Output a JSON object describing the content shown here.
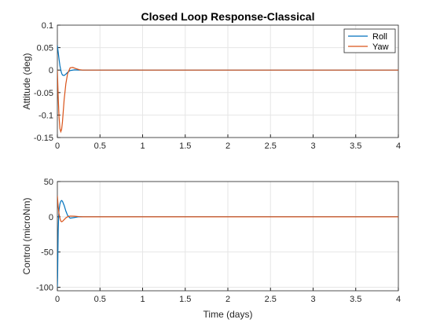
{
  "chart_data": [
    {
      "type": "line",
      "title": "Closed Loop Response-Classical",
      "xlabel": "",
      "ylabel": "Attitude (deg)",
      "xlim": [
        0,
        4
      ],
      "ylim": [
        -0.15,
        0.1
      ],
      "xticks": [
        "0",
        "0.5",
        "1",
        "1.5",
        "2",
        "2.5",
        "3",
        "3.5",
        "4"
      ],
      "yticks": [
        "0.1",
        "0.05",
        "0",
        "-0.05",
        "-0.1",
        "-0.15"
      ],
      "grid": true,
      "legend": {
        "placement": "top-right",
        "entries": [
          "Roll",
          "Yaw"
        ]
      },
      "series": [
        {
          "name": "Roll",
          "color": "#0072BD",
          "x": [
            0,
            0.01,
            0.02,
            0.03,
            0.04,
            0.05,
            0.06,
            0.08,
            0.1,
            0.12,
            0.15,
            0.2,
            0.25,
            0.3,
            0.5,
            1,
            2,
            3,
            4
          ],
          "y": [
            0.055,
            0.04,
            0.024,
            0.01,
            0.0,
            -0.007,
            -0.011,
            -0.012,
            -0.009,
            -0.005,
            -0.001,
            0.0005,
            0.0002,
            0,
            0,
            0,
            0,
            0,
            0
          ]
        },
        {
          "name": "Yaw",
          "color": "#D95319",
          "x": [
            0,
            0.005,
            0.01,
            0.02,
            0.03,
            0.04,
            0.05,
            0.06,
            0.07,
            0.08,
            0.1,
            0.12,
            0.15,
            0.18,
            0.22,
            0.26,
            0.3,
            0.5,
            1,
            2,
            3,
            4
          ],
          "y": [
            0,
            -0.03,
            -0.06,
            -0.105,
            -0.13,
            -0.137,
            -0.132,
            -0.115,
            -0.09,
            -0.065,
            -0.03,
            -0.008,
            0.005,
            0.006,
            0.003,
            0.0008,
            0,
            0,
            0,
            0,
            0,
            0
          ]
        }
      ]
    },
    {
      "type": "line",
      "title": "",
      "xlabel": "Time (days)",
      "ylabel": "Control (microNm)",
      "xlim": [
        0,
        4
      ],
      "ylim": [
        -105,
        50
      ],
      "xticks": [
        "0",
        "0.5",
        "1",
        "1.5",
        "2",
        "2.5",
        "3",
        "3.5",
        "4"
      ],
      "yticks": [
        "50",
        "0",
        "-50",
        "-100"
      ],
      "grid": true,
      "series": [
        {
          "name": "Roll",
          "color": "#0072BD",
          "x": [
            0,
            0.003,
            0.006,
            0.01,
            0.015,
            0.02,
            0.03,
            0.04,
            0.05,
            0.06,
            0.08,
            0.1,
            0.12,
            0.15,
            0.2,
            0.25,
            0.3,
            0.5,
            1,
            2,
            3,
            4
          ],
          "y": [
            -100,
            -85,
            -55,
            -20,
            0,
            10,
            18,
            22,
            23,
            22,
            16,
            8,
            2,
            -2,
            -1,
            0,
            0,
            0,
            0,
            0,
            0,
            0
          ]
        },
        {
          "name": "Yaw",
          "color": "#D95319",
          "x": [
            0,
            0.005,
            0.01,
            0.02,
            0.03,
            0.04,
            0.05,
            0.06,
            0.08,
            0.1,
            0.12,
            0.15,
            0.2,
            0.25,
            0.3,
            0.5,
            1,
            2,
            3,
            4
          ],
          "y": [
            30,
            22,
            14,
            4,
            -2,
            -6,
            -7,
            -6.5,
            -4,
            -1.5,
            0,
            1,
            0.8,
            0.3,
            0,
            0,
            0,
            0,
            0,
            0
          ]
        }
      ]
    }
  ]
}
